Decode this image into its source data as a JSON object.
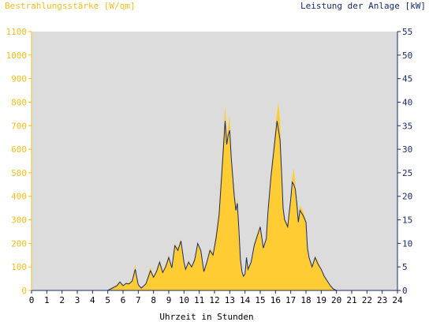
{
  "chart_data": {
    "type": "area",
    "left_axis_title": "Bestrahlungsstärke [W/qm]",
    "right_axis_title": "Leistung der Anlage [kW]",
    "xlabel": "Uhrzeit in Stunden",
    "xlim": [
      0,
      24
    ],
    "ylim_left": [
      0,
      1100
    ],
    "ylim_right": [
      0,
      55
    ],
    "x_ticks": [
      "0",
      "1",
      "2",
      "3",
      "4",
      "5",
      "6",
      "7",
      "8",
      "9",
      "10",
      "11",
      "12",
      "13",
      "14",
      "15",
      "16",
      "17",
      "18",
      "19",
      "20",
      "21",
      "22",
      "23",
      "24"
    ],
    "y_left_ticks": [
      "0",
      "100",
      "200",
      "300",
      "400",
      "500",
      "600",
      "700",
      "800",
      "900",
      "1000",
      "1100"
    ],
    "y_right_ticks": [
      "0",
      "5",
      "10",
      "15",
      "20",
      "25",
      "30",
      "35",
      "40",
      "45",
      "50",
      "55"
    ],
    "grid": false,
    "colors": {
      "plot_background": "#dcdcdc",
      "irradiance_fill": "#ffcc33",
      "power_line": "#1a2a6e",
      "left_axis": "#f0c020",
      "right_axis": "#1a2a6e"
    },
    "series": [
      {
        "name": "Bestrahlungsstärke [W/qm]",
        "axis": "left",
        "style": "area",
        "x": [
          0,
          5.0,
          5.3,
          5.6,
          5.8,
          6.0,
          6.2,
          6.4,
          6.6,
          6.8,
          6.9,
          7.0,
          7.2,
          7.5,
          7.8,
          8.0,
          8.2,
          8.4,
          8.6,
          8.8,
          9.0,
          9.2,
          9.4,
          9.6,
          9.8,
          10.0,
          10.1,
          10.3,
          10.5,
          10.7,
          10.9,
          11.1,
          11.3,
          11.5,
          11.7,
          11.9,
          12.1,
          12.3,
          12.5,
          12.7,
          12.8,
          12.9,
          13.0,
          13.1,
          13.2,
          13.3,
          13.4,
          13.5,
          13.6,
          13.7,
          13.8,
          13.9,
          14.0,
          14.1,
          14.2,
          14.4,
          14.6,
          14.8,
          15.0,
          15.2,
          15.4,
          15.5,
          15.7,
          15.9,
          16.0,
          16.1,
          16.2,
          16.3,
          16.4,
          16.5,
          16.6,
          16.8,
          17.0,
          17.1,
          17.2,
          17.3,
          17.4,
          17.5,
          17.6,
          17.8,
          18.0,
          18.1,
          18.2,
          18.4,
          18.6,
          18.8,
          19.0,
          19.2,
          19.4,
          19.6,
          19.8,
          20.0,
          20.2,
          20.4,
          20.6,
          24
        ],
        "values": [
          0,
          0,
          10,
          25,
          40,
          20,
          35,
          30,
          45,
          110,
          60,
          25,
          10,
          30,
          100,
          60,
          90,
          130,
          80,
          110,
          150,
          100,
          200,
          180,
          220,
          120,
          90,
          130,
          100,
          140,
          200,
          170,
          80,
          120,
          180,
          160,
          240,
          350,
          560,
          790,
          660,
          700,
          740,
          580,
          500,
          420,
          360,
          390,
          280,
          140,
          80,
          60,
          70,
          150,
          90,
          120,
          200,
          240,
          280,
          180,
          220,
          340,
          500,
          620,
          690,
          760,
          800,
          720,
          520,
          360,
          310,
          280,
          400,
          480,
          520,
          450,
          380,
          300,
          360,
          340,
          300,
          180,
          140,
          100,
          150,
          120,
          90,
          60,
          40,
          20,
          5,
          0,
          0,
          0,
          0,
          0
        ]
      },
      {
        "name": "Leistung der Anlage [kW]",
        "axis": "right",
        "style": "line",
        "x": [
          0,
          5.0,
          5.3,
          5.6,
          5.8,
          6.0,
          6.2,
          6.4,
          6.6,
          6.8,
          6.9,
          7.0,
          7.2,
          7.5,
          7.8,
          8.0,
          8.2,
          8.4,
          8.6,
          8.8,
          9.0,
          9.2,
          9.4,
          9.6,
          9.8,
          10.0,
          10.1,
          10.3,
          10.5,
          10.7,
          10.9,
          11.1,
          11.3,
          11.5,
          11.7,
          11.9,
          12.1,
          12.3,
          12.5,
          12.7,
          12.8,
          12.9,
          13.0,
          13.1,
          13.2,
          13.3,
          13.4,
          13.5,
          13.6,
          13.7,
          13.8,
          13.9,
          14.0,
          14.1,
          14.2,
          14.4,
          14.6,
          14.8,
          15.0,
          15.2,
          15.4,
          15.5,
          15.7,
          15.9,
          16.0,
          16.1,
          16.2,
          16.3,
          16.4,
          16.5,
          16.6,
          16.8,
          17.0,
          17.1,
          17.2,
          17.3,
          17.4,
          17.5,
          17.6,
          17.8,
          18.0,
          18.1,
          18.2,
          18.4,
          18.6,
          18.8,
          19.0,
          19.2,
          19.4,
          19.6,
          19.8,
          20.0,
          20.2,
          20.4,
          20.6,
          24
        ],
        "values": [
          0,
          0,
          0.5,
          1.0,
          1.8,
          1.0,
          1.5,
          1.4,
          2.0,
          4.5,
          2.8,
          1.2,
          0.5,
          1.4,
          4.2,
          2.8,
          4.0,
          6.0,
          3.8,
          5.0,
          7.0,
          4.8,
          9.5,
          8.5,
          10.5,
          6.0,
          4.5,
          6.0,
          5.0,
          6.5,
          10.0,
          8.5,
          4.0,
          6.0,
          8.5,
          7.5,
          11.0,
          16.0,
          26.0,
          36.0,
          31.0,
          33.0,
          34.0,
          28.0,
          24.0,
          20.0,
          17.0,
          18.5,
          13.0,
          6.5,
          4.0,
          3.0,
          3.5,
          7.0,
          4.5,
          6.0,
          9.5,
          11.5,
          13.5,
          9.0,
          11.0,
          16.5,
          24.0,
          30.0,
          33.0,
          36.0,
          34.0,
          32.0,
          25.0,
          17.5,
          15.0,
          13.5,
          19.5,
          23.0,
          22.5,
          21.5,
          18.5,
          14.5,
          17.0,
          16.0,
          14.5,
          9.0,
          7.0,
          5.0,
          7.0,
          5.5,
          4.5,
          3.0,
          2.0,
          1.0,
          0.3,
          0,
          0,
          0,
          0,
          0
        ]
      }
    ]
  }
}
